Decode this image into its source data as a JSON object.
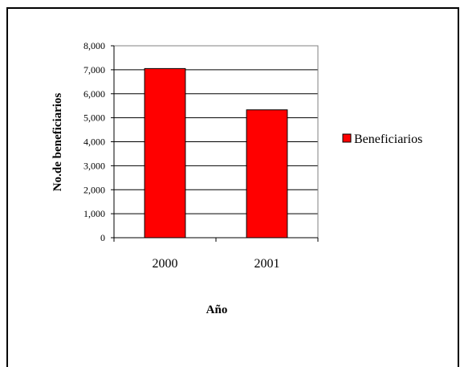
{
  "chart_data": {
    "type": "bar",
    "categories": [
      "2000",
      "2001"
    ],
    "series": [
      {
        "name": "Beneficiarios",
        "values": [
          7050,
          5330
        ],
        "color": "#ff0000"
      }
    ],
    "title": "",
    "xlabel": "Año",
    "ylabel": "No.de beneficiarios",
    "ylim": [
      0,
      8000
    ],
    "yticks": [
      0,
      1000,
      2000,
      3000,
      4000,
      5000,
      6000,
      7000,
      8000
    ],
    "ytick_labels": [
      "0",
      "1,000",
      "2,000",
      "3,000",
      "4,000",
      "5,000",
      "6,000",
      "7,000",
      "8,000"
    ],
    "grid": true,
    "legend_position": "right"
  }
}
